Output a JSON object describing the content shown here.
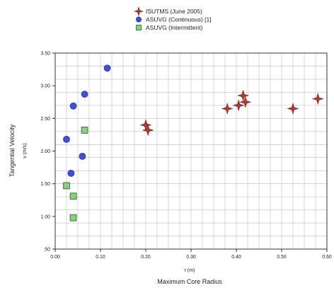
{
  "chart_data": {
    "type": "scatter",
    "xlabel": "Maximum Core Radius",
    "xunit": "r (m)",
    "ylabel": "Tangential Velocity",
    "yunit": "v (m/s)",
    "xlim": [
      0,
      0.6
    ],
    "ylim": [
      0.5,
      3.5
    ],
    "xticks": [
      "0.00",
      "0.10",
      "0.20",
      "0.30",
      "0.40",
      "0.50",
      "0.60"
    ],
    "yticks": [
      ".50",
      "1.00",
      "1.50",
      "2.00",
      "2.50",
      "3.00",
      "3.50"
    ],
    "grid": true,
    "legend_position": "top-center",
    "series": [
      {
        "name": "ISUTMS (June 2005)",
        "marker": "star4",
        "color": "#b03a2e",
        "points": [
          [
            0.2,
            2.4
          ],
          [
            0.205,
            2.32
          ],
          [
            0.38,
            2.65
          ],
          [
            0.405,
            2.7
          ],
          [
            0.415,
            2.85
          ],
          [
            0.42,
            2.75
          ],
          [
            0.525,
            2.65
          ],
          [
            0.58,
            2.8
          ]
        ]
      },
      {
        "name": "ASUVG (Continuous) [1]",
        "marker": "circle",
        "color": "#3d50d6",
        "points": [
          [
            0.115,
            3.27
          ],
          [
            0.065,
            2.87
          ],
          [
            0.04,
            2.69
          ],
          [
            0.025,
            2.18
          ],
          [
            0.06,
            1.92
          ],
          [
            0.035,
            1.66
          ]
        ]
      },
      {
        "name": "ASUVG (Intermittent)",
        "marker": "square",
        "color": "#8bcf84",
        "points": [
          [
            0.065,
            2.32
          ],
          [
            0.025,
            1.47
          ],
          [
            0.04,
            1.31
          ],
          [
            0.04,
            0.98
          ]
        ]
      }
    ]
  }
}
